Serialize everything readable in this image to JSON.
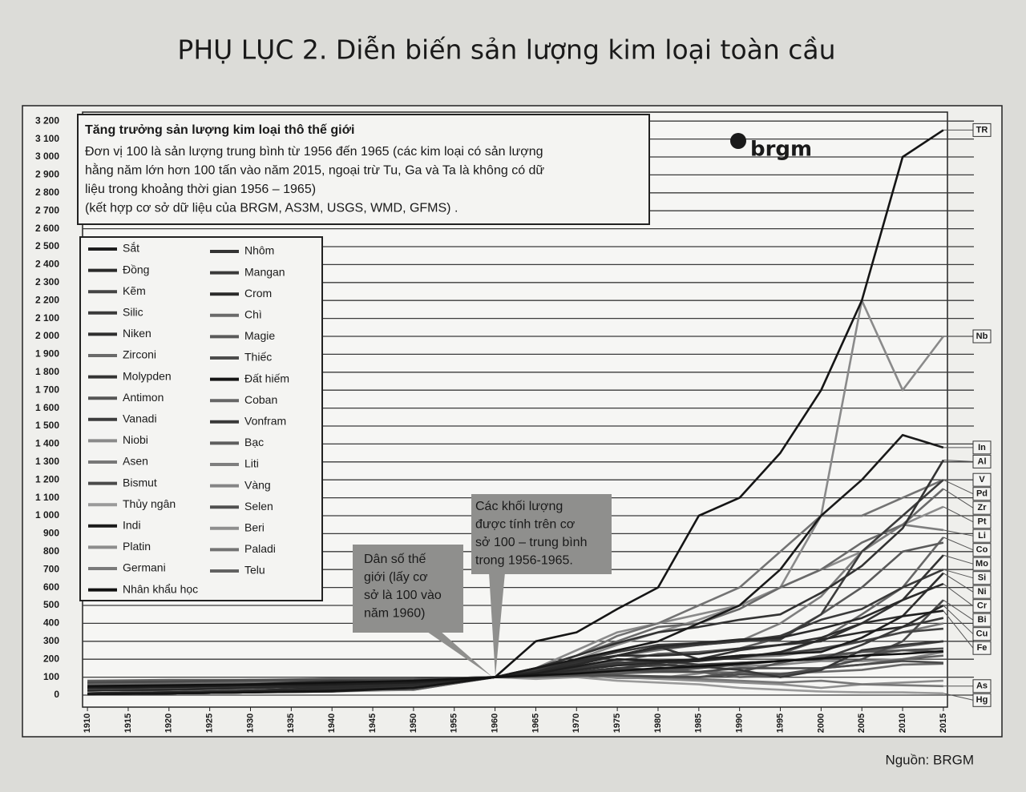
{
  "chart_data": {
    "type": "line",
    "title": "PHỤ LỤC 2. Diễn biến sản lượng kim loại toàn cầu",
    "note_title": "Tăng trưởng sản lượng kim loại thô thế giới",
    "note_lines": [
      "Đơn vị 100 là sản lượng trung bình từ 1956 đến 1965 (các kim loại có sản lượng",
      "hằng năm lớn hơn 100 tấn vào năm 2015, ngoại trừ Tu, Ga và Ta là không có dữ",
      "liệu trong khoảng thời gian 1956 – 1965)",
      "(kết hợp cơ sở dữ liệu của BRGM, AS3M, USGS, WMD, GFMS) ."
    ],
    "logo": "brgm",
    "callouts": [
      [
        "Dân số thế",
        "giới (lấy cơ",
        "sở là 100 vào",
        "năm 1960)"
      ],
      [
        "Các khối lượng",
        "được tính trên cơ",
        "sở 100 – trung bình",
        "trong 1956-1965."
      ]
    ],
    "source": "Nguồn: BRGM",
    "x": [
      1910,
      1920,
      1930,
      1940,
      1950,
      1960,
      1965,
      1970,
      1975,
      1980,
      1985,
      1990,
      1995,
      2000,
      2005,
      2010,
      2015
    ],
    "xlim": [
      1909.4,
      2015.5
    ],
    "xticks": [
      1910,
      1915,
      1920,
      1925,
      1930,
      1935,
      1940,
      1945,
      1950,
      1955,
      1960,
      1965,
      1970,
      1975,
      1980,
      1985,
      1990,
      1995,
      2000,
      2005,
      2010,
      2015
    ],
    "ylim": [
      -67,
      3250
    ],
    "yticks": [
      0,
      100,
      200,
      300,
      400,
      500,
      600,
      700,
      800,
      900,
      {
        "value": 1000,
        "label": "1 000"
      },
      {
        "value": 1100,
        "label": "1 100"
      },
      {
        "value": 1200,
        "label": "1 200"
      },
      {
        "value": 1300,
        "label": "1 300"
      },
      {
        "value": 1400,
        "label": "1 400"
      },
      {
        "value": 1500,
        "label": "1 500"
      },
      {
        "value": 1600,
        "label": "1 600"
      },
      {
        "value": 1700,
        "label": "1 700"
      },
      {
        "value": 1800,
        "label": "1 800"
      },
      {
        "value": 1900,
        "label": "1 900"
      },
      {
        "value": 2000,
        "label": "2 000"
      },
      {
        "value": 2100,
        "label": "2 100"
      },
      {
        "value": 2200,
        "label": "2 200"
      },
      {
        "value": 2300,
        "label": "2 300"
      },
      {
        "value": 2400,
        "label": "2 400"
      },
      {
        "value": 2500,
        "label": "2 500"
      },
      {
        "value": 2600,
        "label": "2 600"
      },
      {
        "value": 2700,
        "label": "2 700"
      },
      {
        "value": 2800,
        "label": "2 800"
      },
      {
        "value": 2900,
        "label": "2 900"
      },
      {
        "value": 3000,
        "label": "3 000"
      },
      {
        "value": 3100,
        "label": "3 100"
      },
      {
        "value": 3200,
        "label": "3 200"
      }
    ],
    "grid": true,
    "legend": "upper left",
    "series": [
      {
        "name": "Sắt",
        "color": "#1e1e1e",
        "end_label": "Fe",
        "values": [
          40,
          45,
          55,
          60,
          70,
          100,
          120,
          160,
          200,
          190,
          200,
          220,
          230,
          240,
          320,
          440,
          470
        ]
      },
      {
        "name": "Đồng",
        "color": "#2a2a2a",
        "end_label": "Cu",
        "values": [
          25,
          30,
          40,
          50,
          60,
          100,
          115,
          140,
          165,
          180,
          190,
          210,
          240,
          310,
          350,
          380,
          500
        ]
      },
      {
        "name": "Kẽm",
        "color": "#444444",
        "values": [
          25,
          30,
          40,
          50,
          60,
          100,
          120,
          150,
          170,
          180,
          190,
          220,
          230,
          260,
          300,
          350,
          370
        ]
      },
      {
        "name": "Silic",
        "color": "#3a3a3a",
        "end_label": "Si",
        "values": [
          10,
          15,
          25,
          40,
          60,
          100,
          130,
          170,
          220,
          260,
          280,
          300,
          330,
          420,
          480,
          600,
          700
        ]
      },
      {
        "name": "Niken",
        "color": "#2e2e2e",
        "end_label": "Ni",
        "values": [
          10,
          15,
          25,
          40,
          55,
          100,
          130,
          190,
          220,
          220,
          230,
          260,
          280,
          320,
          400,
          440,
          680
        ]
      },
      {
        "name": "Zirconi",
        "color": "#6a6a6a",
        "end_label": "Zr",
        "values": [
          5,
          10,
          15,
          25,
          40,
          100,
          150,
          220,
          300,
          380,
          400,
          480,
          600,
          700,
          850,
          950,
          1150
        ]
      },
      {
        "name": "Molypden",
        "color": "#333333",
        "end_label": "Mo",
        "values": [
          5,
          10,
          15,
          40,
          60,
          100,
          130,
          180,
          220,
          270,
          200,
          250,
          280,
          300,
          400,
          530,
          780
        ]
      },
      {
        "name": "Antimon",
        "color": "#555555",
        "values": [
          70,
          75,
          80,
          90,
          90,
          100,
          110,
          120,
          110,
          100,
          100,
          130,
          180,
          220,
          240,
          250,
          240
        ]
      },
      {
        "name": "Vanadi",
        "color": "#3c3c3c",
        "end_label": "V",
        "values": [
          5,
          10,
          15,
          25,
          40,
          100,
          140,
          190,
          240,
          280,
          290,
          300,
          310,
          450,
          800,
          1000,
          1200
        ]
      },
      {
        "name": "Niobi",
        "color": "#8a8a8a",
        "end_label": "Nb",
        "values": [
          5,
          10,
          15,
          20,
          30,
          100,
          150,
          250,
          350,
          400,
          450,
          500,
          600,
          1000,
          2200,
          1700,
          2000
        ]
      },
      {
        "name": "Asen",
        "color": "#777777",
        "end_label": "As",
        "values": [
          60,
          65,
          70,
          80,
          90,
          100,
          100,
          105,
          110,
          100,
          90,
          80,
          70,
          80,
          60,
          55,
          50
        ]
      },
      {
        "name": "Bismut",
        "color": "#4a4a4a",
        "end_label": "Bi",
        "values": [
          40,
          50,
          60,
          70,
          80,
          100,
          110,
          130,
          140,
          130,
          130,
          150,
          150,
          150,
          200,
          300,
          530
        ]
      },
      {
        "name": "Thủy ngân",
        "color": "#9a9a9a",
        "end_label": "Hg",
        "values": [
          60,
          50,
          50,
          80,
          70,
          100,
          90,
          100,
          80,
          70,
          60,
          40,
          30,
          20,
          15,
          15,
          10
        ]
      },
      {
        "name": "Indi",
        "color": "#1a1a1a",
        "end_label": "In",
        "values": [
          5,
          10,
          15,
          20,
          40,
          100,
          150,
          200,
          250,
          300,
          400,
          500,
          700,
          1000,
          1200,
          1450,
          1380
        ]
      },
      {
        "name": "Platin",
        "color": "#8c8c8c",
        "end_label": "Pt",
        "values": [
          10,
          15,
          25,
          40,
          60,
          100,
          140,
          200,
          280,
          350,
          420,
          500,
          600,
          700,
          800,
          950,
          1050
        ]
      },
      {
        "name": "Germani",
        "color": "#7a7a7a",
        "values": [
          5,
          10,
          15,
          25,
          40,
          100,
          130,
          160,
          180,
          190,
          200,
          210,
          220,
          250,
          300,
          350,
          400
        ]
      },
      {
        "name": "Nhân khẩu học",
        "color": "#111111",
        "values": [
          50,
          55,
          60,
          70,
          80,
          100,
          110,
          120,
          135,
          150,
          160,
          175,
          190,
          205,
          220,
          230,
          245
        ]
      },
      {
        "name": "Nhôm",
        "color": "#333333",
        "end_label": "Al",
        "values": [
          5,
          10,
          15,
          30,
          50,
          100,
          150,
          220,
          290,
          350,
          380,
          420,
          450,
          570,
          720,
          930,
          1310
        ]
      },
      {
        "name": "Mangan",
        "color": "#3a3a3a",
        "values": [
          40,
          45,
          50,
          60,
          70,
          100,
          120,
          150,
          180,
          190,
          170,
          180,
          190,
          200,
          280,
          380,
          430
        ]
      },
      {
        "name": "Crom",
        "color": "#2a2a2a",
        "end_label": "Cr",
        "values": [
          10,
          15,
          25,
          40,
          60,
          100,
          130,
          170,
          220,
          270,
          290,
          310,
          320,
          370,
          430,
          530,
          620
        ]
      },
      {
        "name": "Chì",
        "color": "#6a6a6a",
        "values": [
          60,
          65,
          75,
          80,
          85,
          100,
          110,
          120,
          130,
          130,
          130,
          125,
          120,
          130,
          140,
          170,
          175
        ]
      },
      {
        "name": "Magie",
        "color": "#5a5a5a",
        "values": [
          5,
          10,
          15,
          40,
          30,
          100,
          130,
          160,
          190,
          230,
          240,
          260,
          320,
          450,
          600,
          800,
          850
        ]
      },
      {
        "name": "Thiếc",
        "color": "#4c4c4c",
        "values": [
          70,
          75,
          85,
          80,
          90,
          100,
          105,
          110,
          110,
          105,
          100,
          115,
          115,
          150,
          170,
          190,
          180
        ]
      },
      {
        "name": "Đất hiếm",
        "color": "#151515",
        "end_label": "TR",
        "values": [
          5,
          10,
          15,
          25,
          40,
          100,
          300,
          350,
          480,
          600,
          1000,
          1100,
          1350,
          1700,
          2200,
          3000,
          3150
        ]
      },
      {
        "name": "Coban",
        "color": "#666666",
        "end_label": "Co",
        "values": [
          30,
          35,
          40,
          50,
          70,
          100,
          120,
          150,
          170,
          160,
          200,
          220,
          230,
          310,
          450,
          600,
          880
        ]
      },
      {
        "name": "Vonfram",
        "color": "#383838",
        "values": [
          40,
          45,
          60,
          80,
          70,
          100,
          110,
          130,
          150,
          170,
          160,
          140,
          100,
          140,
          250,
          280,
          300
        ]
      },
      {
        "name": "Bạc",
        "color": "#5e5e5e",
        "values": [
          80,
          85,
          85,
          90,
          90,
          100,
          110,
          120,
          120,
          130,
          150,
          180,
          190,
          210,
          240,
          270,
          300
        ]
      },
      {
        "name": "Liti",
        "color": "#7e7e7e",
        "end_label": "Li",
        "values": [
          5,
          10,
          15,
          20,
          40,
          100,
          130,
          170,
          220,
          250,
          280,
          300,
          400,
          550,
          800,
          950,
          920
        ]
      },
      {
        "name": "Vàng",
        "color": "#858585",
        "values": [
          60,
          65,
          70,
          80,
          75,
          100,
          110,
          115,
          95,
          95,
          120,
          160,
          170,
          190,
          190,
          200,
          240
        ]
      },
      {
        "name": "Selen",
        "color": "#505050",
        "values": [
          10,
          15,
          20,
          40,
          60,
          100,
          110,
          130,
          150,
          140,
          150,
          170,
          190,
          200,
          220,
          250,
          260
        ]
      },
      {
        "name": "Beri",
        "color": "#8e8e8e",
        "values": [
          10,
          20,
          30,
          60,
          80,
          100,
          120,
          110,
          100,
          90,
          80,
          70,
          60,
          40,
          60,
          70,
          80
        ]
      },
      {
        "name": "Paladi",
        "color": "#737373",
        "end_label": "Pd",
        "values": [
          5,
          10,
          15,
          30,
          50,
          100,
          150,
          220,
          330,
          400,
          500,
          600,
          800,
          1000,
          1000,
          1100,
          1200
        ]
      },
      {
        "name": "Telu",
        "color": "#626262",
        "values": [
          40,
          45,
          50,
          60,
          70,
          100,
          110,
          130,
          150,
          140,
          130,
          100,
          110,
          150,
          170,
          200,
          220
        ]
      }
    ]
  }
}
